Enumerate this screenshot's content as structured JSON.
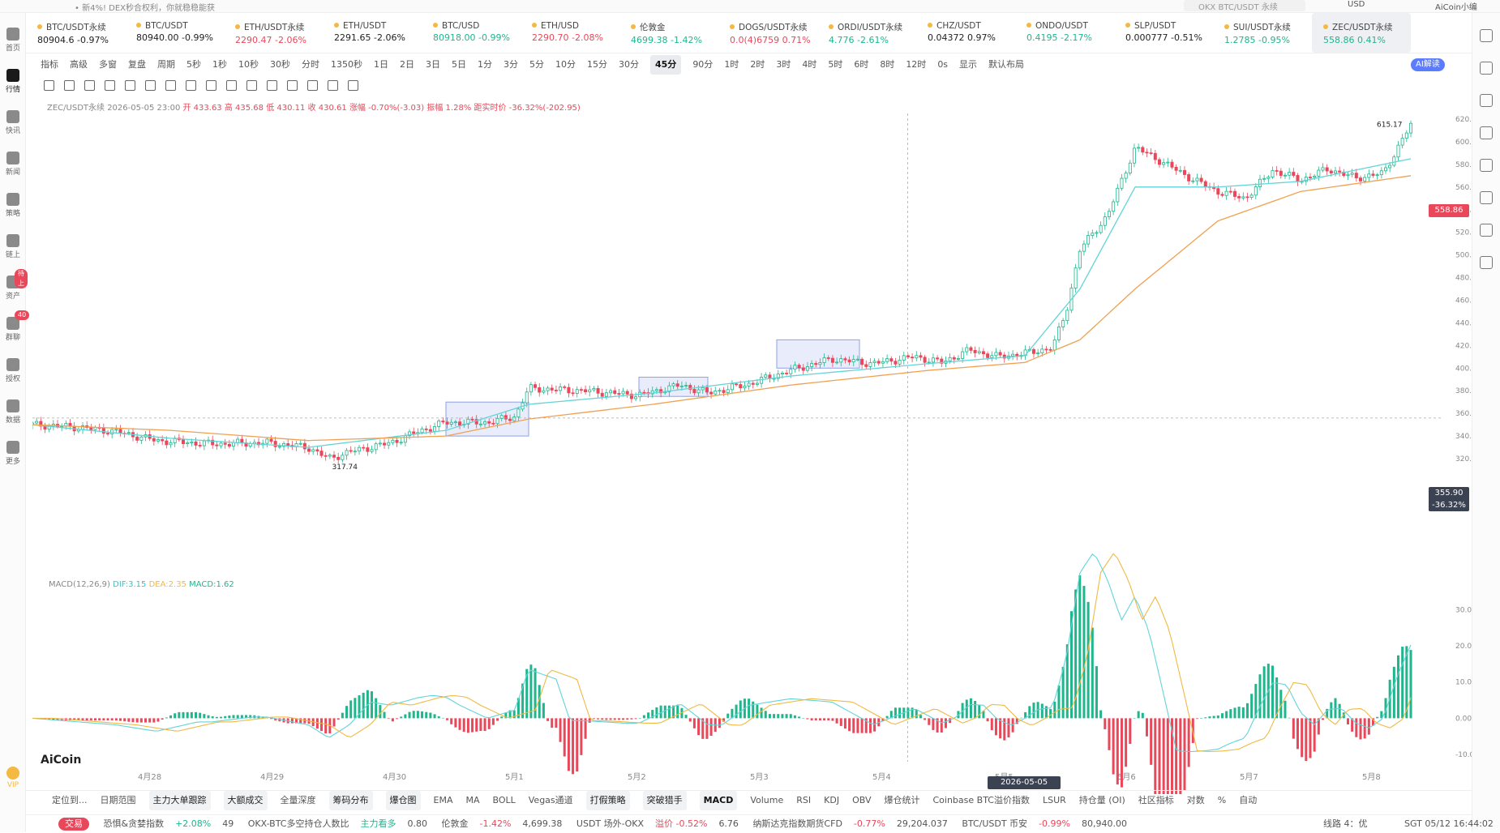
{
  "top": {
    "notice": "• 新4%! DEX秒合权利，你就稳稳能获",
    "search_placeholder": "OKX BTC/USDT 永续",
    "currency": "USD",
    "user": "AiCoin小编"
  },
  "sidebar": [
    {
      "label": "首页",
      "name": "home"
    },
    {
      "label": "行情",
      "name": "market",
      "active": true
    },
    {
      "label": "快讯",
      "name": "flash"
    },
    {
      "label": "新闻",
      "name": "news"
    },
    {
      "label": "策略",
      "name": "strategy"
    },
    {
      "label": "链上",
      "name": "onchain"
    },
    {
      "label": "资产",
      "name": "assets",
      "badge": "待上"
    },
    {
      "label": "群聊",
      "name": "chat",
      "badge": "40"
    },
    {
      "label": "授权",
      "name": "auth"
    },
    {
      "label": "数据",
      "name": "data"
    },
    {
      "label": "更多",
      "name": "more"
    }
  ],
  "sidebar_bottom": {
    "vip": "VIP"
  },
  "tickers": [
    {
      "name": "BTC/USDT永续",
      "price": "80904.6",
      "change": "-0.97%",
      "dir": "nu"
    },
    {
      "name": "BTC/USDT",
      "price": "80940.00",
      "change": "-0.99%",
      "dir": "nu"
    },
    {
      "name": "ETH/USDT永续",
      "price": "2290.47",
      "change": "-2.06%",
      "dir": "dn"
    },
    {
      "name": "ETH/USDT",
      "price": "2291.65",
      "change": "-2.06%",
      "dir": "nu"
    },
    {
      "name": "BTC/USD",
      "price": "80918.00",
      "change": "-0.99%",
      "dir": "up"
    },
    {
      "name": "ETH/USD",
      "price": "2290.70",
      "change": "-2.08%",
      "dir": "dn"
    },
    {
      "name": "伦敦金",
      "price": "4699.38",
      "change": "-1.42%",
      "dir": "up"
    },
    {
      "name": "DOGS/USDT永续",
      "price": "0.0(4)6759",
      "change": "0.71%",
      "dir": "dn"
    },
    {
      "name": "ORDI/USDT永续",
      "price": "4.776",
      "change": "-2.61%",
      "dir": "up"
    },
    {
      "name": "CHZ/USDT",
      "price": "0.04372",
      "change": "0.97%",
      "dir": "nu"
    },
    {
      "name": "ONDO/USDT",
      "price": "0.4195",
      "change": "-2.17%",
      "dir": "up"
    },
    {
      "name": "SLP/USDT",
      "price": "0.000777",
      "change": "-0.51%",
      "dir": "nu"
    },
    {
      "name": "SUI/USDT永续",
      "price": "1.2785",
      "change": "-0.95%",
      "dir": "up"
    },
    {
      "name": "ZEC/USDT永续",
      "price": "558.86",
      "change": "0.41%",
      "dir": "up",
      "active": true
    }
  ],
  "toolbar1": {
    "left": [
      "指标",
      "高级",
      "多窗",
      "复盘",
      "周期"
    ],
    "intervals": [
      "5秒",
      "1秒",
      "10秒",
      "30秒",
      "分时",
      "1350秒",
      "1日",
      "2日",
      "3日",
      "5日",
      "1分",
      "3分",
      "5分",
      "10分",
      "15分",
      "30分",
      "45分",
      "90分",
      "1时",
      "2时",
      "3时",
      "4时",
      "5时",
      "6时",
      "8时",
      "12时"
    ],
    "selected": "45分",
    "right": [
      "0s",
      "显示",
      "默认布局"
    ],
    "ai": "AI解读"
  },
  "legend": {
    "symbol": "ZEC/USDT永续",
    "time": "2026-05-05 23:00",
    "open": "开 433.63",
    "high": "高 435.68",
    "low": "低 430.11",
    "close": "收 430.61",
    "change": "涨幅 -0.70%(-3.03)",
    "amp": "振幅 1.28%",
    "dist": "距实时价 -36.32%(-202.95)"
  },
  "macd_legend": {
    "name": "MACD(12,26,9)",
    "dif": "DIF:3.15",
    "dea": "DEA:2.35",
    "macd": "MACD:1.62"
  },
  "chart_data": {
    "type": "candlestick",
    "y_ticks": [
      "620.00",
      "600.00",
      "580.00",
      "560.00",
      "540.00",
      "520.00",
      "500.00",
      "480.00",
      "460.00",
      "440.00",
      "420.00",
      "400.00",
      "380.00",
      "360.00",
      "340.00",
      "320.00"
    ],
    "ylim": [
      310,
      625
    ],
    "x_ticks": [
      "4月28",
      "4月29",
      "4月30",
      "5月1",
      "5月2",
      "5月3",
      "5月4",
      "5月5",
      "5月6",
      "5月7",
      "5月8"
    ],
    "high_label": "615.17",
    "low_label": "317.74",
    "current_price": "558.86",
    "crosshair_price": "355.90",
    "crosshair_pct": "-36.32%",
    "crosshair_date": "2026-05-05 23:00",
    "close_path": [
      [
        0,
        350
      ],
      [
        0.03,
        348
      ],
      [
        0.06,
        344
      ],
      [
        0.09,
        336
      ],
      [
        0.13,
        333
      ],
      [
        0.17,
        334
      ],
      [
        0.2,
        330
      ],
      [
        0.215,
        320
      ],
      [
        0.23,
        326
      ],
      [
        0.26,
        334
      ],
      [
        0.28,
        344
      ],
      [
        0.3,
        352
      ],
      [
        0.33,
        352
      ],
      [
        0.35,
        357
      ],
      [
        0.36,
        382
      ],
      [
        0.4,
        380
      ],
      [
        0.44,
        376
      ],
      [
        0.47,
        385
      ],
      [
        0.49,
        378
      ],
      [
        0.52,
        386
      ],
      [
        0.55,
        398
      ],
      [
        0.58,
        408
      ],
      [
        0.61,
        404
      ],
      [
        0.64,
        410
      ],
      [
        0.66,
        405
      ],
      [
        0.68,
        416
      ],
      [
        0.7,
        410
      ],
      [
        0.72,
        413
      ],
      [
        0.74,
        418
      ],
      [
        0.75,
        450
      ],
      [
        0.76,
        505
      ],
      [
        0.78,
        535
      ],
      [
        0.8,
        595
      ],
      [
        0.82,
        582
      ],
      [
        0.84,
        568
      ],
      [
        0.86,
        556
      ],
      [
        0.88,
        550
      ],
      [
        0.9,
        575
      ],
      [
        0.92,
        566
      ],
      [
        0.94,
        576
      ],
      [
        0.96,
        568
      ],
      [
        0.98,
        572
      ],
      [
        1.0,
        615
      ]
    ],
    "ma_fast": [
      [
        0,
        350
      ],
      [
        0.1,
        338
      ],
      [
        0.2,
        330
      ],
      [
        0.3,
        345
      ],
      [
        0.36,
        368
      ],
      [
        0.45,
        378
      ],
      [
        0.55,
        393
      ],
      [
        0.65,
        404
      ],
      [
        0.72,
        411
      ],
      [
        0.76,
        470
      ],
      [
        0.8,
        560
      ],
      [
        0.86,
        560
      ],
      [
        0.92,
        565
      ],
      [
        1.0,
        585
      ]
    ],
    "ma_slow": [
      [
        0,
        350
      ],
      [
        0.1,
        345
      ],
      [
        0.2,
        336
      ],
      [
        0.3,
        340
      ],
      [
        0.36,
        355
      ],
      [
        0.45,
        368
      ],
      [
        0.55,
        385
      ],
      [
        0.65,
        398
      ],
      [
        0.72,
        405
      ],
      [
        0.76,
        425
      ],
      [
        0.8,
        470
      ],
      [
        0.86,
        530
      ],
      [
        0.92,
        556
      ],
      [
        1.0,
        570
      ]
    ],
    "boxes": [
      [
        0.3,
        340,
        0.36,
        370
      ],
      [
        0.44,
        375,
        0.49,
        392
      ],
      [
        0.54,
        400,
        0.6,
        425
      ]
    ],
    "macd_ticks": [
      "30.00",
      "20.00",
      "10.00",
      "0.00",
      "-10.00"
    ],
    "macd_ylim": [
      -12,
      35
    ]
  },
  "logo": "AiCoin",
  "bottom_tools": [
    "定位到...",
    "日期范围",
    "主力大单跟踪",
    "大额成交",
    "全量深度",
    "筹码分布",
    "爆仓图",
    "EMA",
    "MA",
    "BOLL",
    "Vegas通道",
    "打假策略",
    "突破猎手"
  ],
  "bottom_indicators": [
    "MACD",
    "Volume",
    "RSI",
    "KDJ",
    "OBV",
    "爆仓统计",
    "Coinbase BTC溢价指数",
    "LSUR",
    "持仓量 (OI)"
  ],
  "bottom_right": [
    "社区指标",
    "对数",
    "%",
    "自动"
  ],
  "status": {
    "trade": "交易",
    "fear": "恐惧&贪婪指数",
    "fear_change": "+2.08%",
    "fear_val": "49",
    "okx": "OKX-BTC多空持仓人数比",
    "okx_tag": "主力看多",
    "okx_val": "0.80",
    "gold": "伦敦金",
    "gold_change": "-1.42%",
    "gold_val": "4,699.38",
    "usdt": "USDT 场外-OKX",
    "usdt_tag": "溢价 -0.52%",
    "usdt_val": "6.76",
    "nasdaq": "纳斯达克指数期货CFD",
    "nasdaq_change": "-0.77%",
    "nasdaq_val": "29,204.037",
    "btc": "BTC/USDT 币安",
    "btc_change": "-0.99%",
    "btc_val": "80,940.00",
    "line": "线路 4：优",
    "time": "SGT 05/12 16:44:02"
  }
}
